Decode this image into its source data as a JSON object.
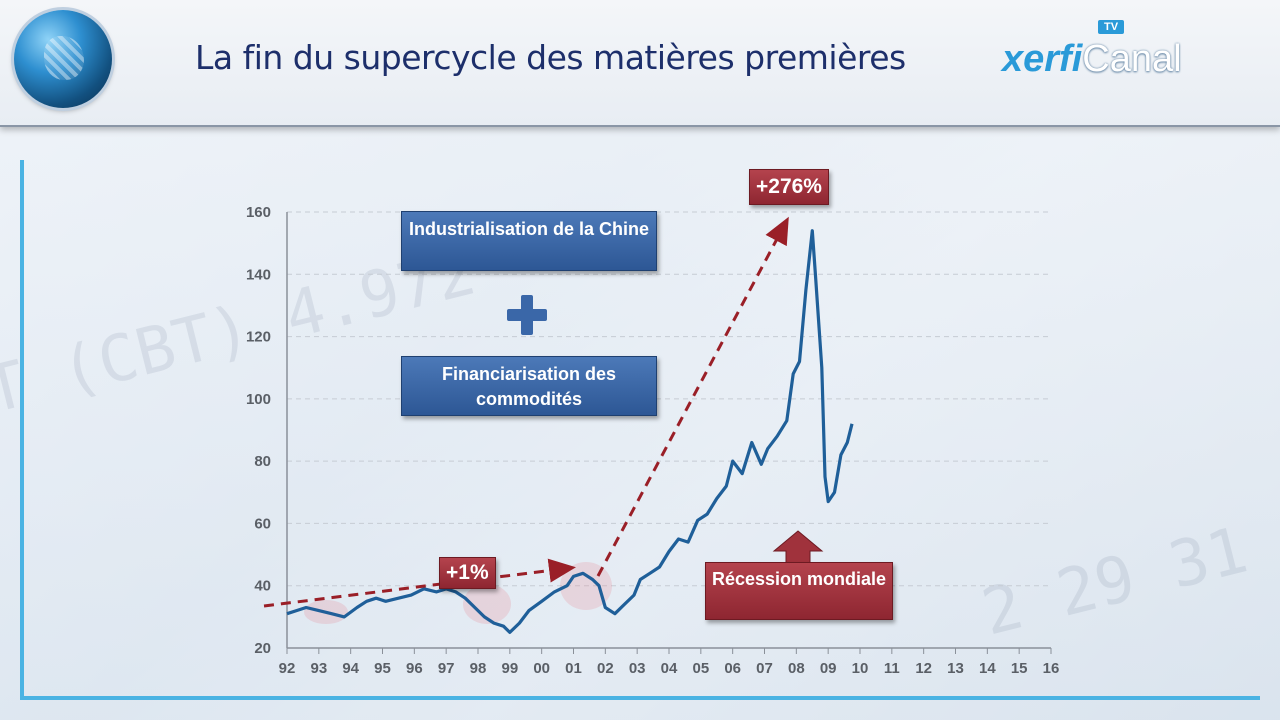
{
  "header": {
    "title": "La fin du supercycle des matières premières",
    "logo_part1": "xerfi",
    "logo_part2": "Canal",
    "logo_badge": "TV"
  },
  "annotations": {
    "box1": "Industrialisation de la Chine",
    "plus_icon": "plus-icon",
    "box2": "Financiarisation des commodités",
    "pct_small": "+1%",
    "pct_big": "+276%",
    "recession": "Récession mondiale",
    "up_arrow_icon": "up-arrow-icon"
  },
  "colors": {
    "line": "#1f5f99",
    "arrow": "#9a1f27",
    "blue_box": "#3a67a8",
    "red_box": "#a0323c",
    "title": "#1d2f6b"
  },
  "chart_data": {
    "type": "line",
    "title": "",
    "xlabel": "",
    "ylabel": "",
    "ylim": [
      20,
      160
    ],
    "yticks": [
      20,
      40,
      60,
      80,
      100,
      120,
      140,
      160
    ],
    "xlim": [
      1992,
      2016
    ],
    "xticks": [
      "92",
      "93",
      "94",
      "95",
      "96",
      "97",
      "98",
      "99",
      "00",
      "01",
      "02",
      "03",
      "04",
      "05",
      "06",
      "07",
      "08",
      "09",
      "10",
      "11",
      "12",
      "13",
      "14",
      "15",
      "16"
    ],
    "grid": "horizontal dashed",
    "series": [
      {
        "x": [
          1992.0,
          1992.3,
          1992.6,
          1993.0,
          1993.4,
          1993.8,
          1994.2,
          1994.5,
          1994.8,
          1995.1,
          1995.5,
          1995.9,
          1996.3,
          1996.7,
          1997.0,
          1997.3,
          1997.6,
          1997.9,
          1998.2,
          1998.5,
          1998.8,
          1999.0,
          1999.3,
          1999.6,
          2000.0,
          2000.4,
          2000.8,
          2001.0,
          2001.3,
          2001.6,
          2001.8,
          2002.0,
          2002.3,
          2002.6,
          2002.9,
          2003.1,
          2003.4,
          2003.7,
          2004.0,
          2004.3,
          2004.6,
          2004.9,
          2005.2,
          2005.5,
          2005.8,
          2006.0,
          2006.3,
          2006.6,
          2006.9,
          2007.1,
          2007.4,
          2007.7,
          2007.9,
          2008.1,
          2008.3,
          2008.5,
          2008.6,
          2008.8,
          2008.9,
          2009.0,
          2009.2,
          2009.4,
          2009.6,
          2009.75
        ],
        "y": [
          31,
          32,
          33,
          32,
          31,
          30,
          33,
          35,
          36,
          35,
          36,
          37,
          39,
          38,
          39,
          38,
          36,
          33,
          30,
          28,
          27,
          25,
          28,
          32,
          35,
          38,
          40,
          43,
          44,
          42,
          40,
          33,
          31,
          34,
          37,
          42,
          44,
          46,
          51,
          55,
          54,
          61,
          63,
          68,
          72,
          80,
          76,
          86,
          79,
          84,
          88,
          93,
          108,
          112,
          135,
          154,
          140,
          110,
          75,
          67,
          70,
          82,
          86,
          92
        ]
      }
    ]
  }
}
